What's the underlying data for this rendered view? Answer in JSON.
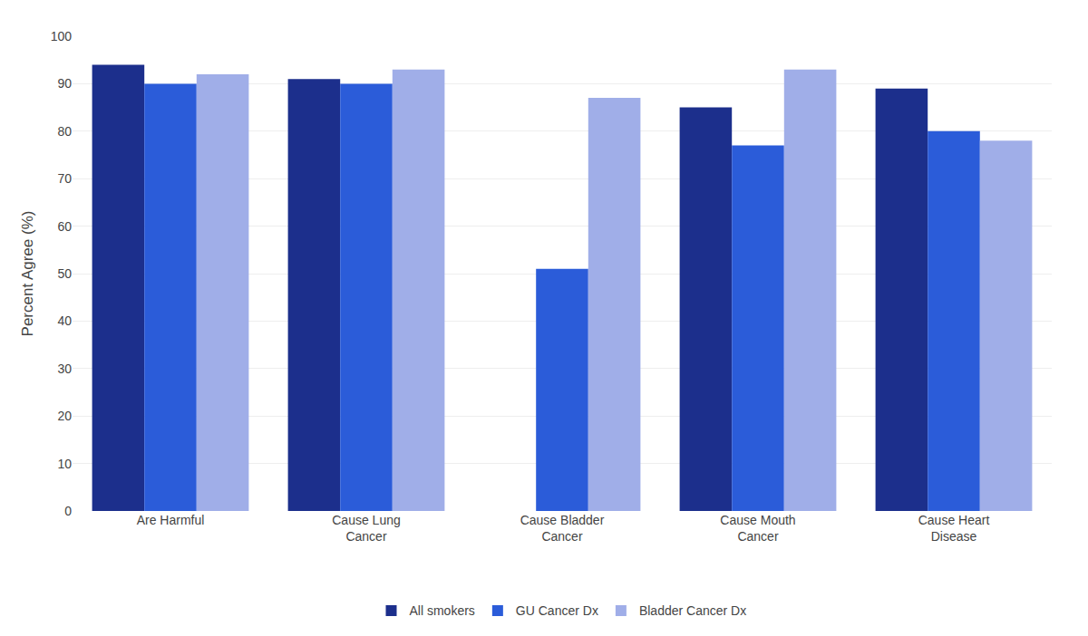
{
  "chart_data": {
    "type": "bar",
    "categories": [
      "Are Harmful",
      "Cause Lung\nCancer",
      "Cause Bladder\nCancer",
      "Cause Mouth\nCancer",
      "Cause Heart\nDisease"
    ],
    "series": [
      {
        "name": "All smokers",
        "color": "#1c2f8c",
        "values": [
          94,
          91,
          null,
          85,
          89
        ]
      },
      {
        "name": "GU Cancer Dx",
        "color": "#2b5cd9",
        "values": [
          90,
          90,
          51,
          77,
          80
        ]
      },
      {
        "name": "Bladder Cancer Dx",
        "color": "#a0aee8",
        "values": [
          92,
          93,
          87,
          93,
          78
        ]
      }
    ],
    "ylabel": "Percent Agree (%)",
    "ylim": [
      0,
      100
    ],
    "yticks": [
      0,
      10,
      20,
      30,
      40,
      50,
      60,
      70,
      80,
      90,
      100
    ],
    "grid": true,
    "legend": "bottom"
  }
}
